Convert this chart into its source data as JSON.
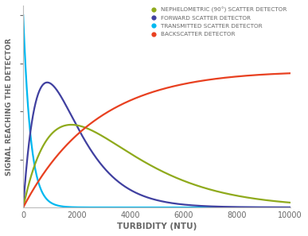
{
  "title": "",
  "xlabel": "TURBIDITY (NTU)",
  "ylabel": "SIGNAL REACHING THE DETECTOR",
  "xlim": [
    0,
    10000
  ],
  "ylim": [
    0,
    1.05
  ],
  "background_color": "#ffffff",
  "legend": [
    {
      "label": "NEPHELOMETRIC (90°) SCATTER DETECTOR",
      "color": "#8faa1c"
    },
    {
      "label": "FORWARD SCATTER DETECTOR",
      "color": "#4040a0"
    },
    {
      "label": "TRANSMITTED SCATTER DETECTOR",
      "color": "#00b8f0"
    },
    {
      "label": "BACKSCATTER DETECTOR",
      "color": "#e84020"
    }
  ],
  "x_ticks": [
    0,
    2000,
    4000,
    6000,
    8000,
    10000
  ],
  "font_color": "#666666",
  "linewidth": 1.6
}
